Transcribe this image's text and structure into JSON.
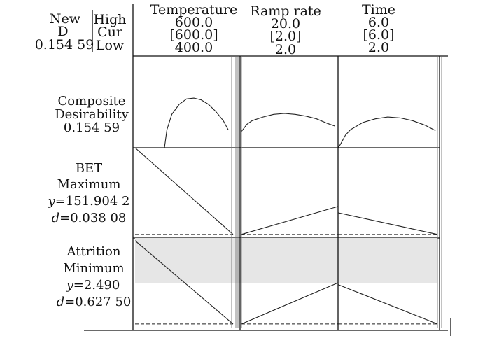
{
  "summary": {
    "new_label": "New",
    "d_label": "D",
    "d_value": "0.154 59",
    "high_label": "High",
    "cur_label": "Cur",
    "low_label": "Low"
  },
  "chart_data": {
    "type": "line",
    "factors": [
      {
        "name": "Temperature",
        "high": "600.0",
        "cur": "[600.0]",
        "low": "400.0",
        "range": [
          400,
          600
        ],
        "current": 600
      },
      {
        "name": "Ramp rate",
        "high": "20.0",
        "cur": "[2.0]",
        "low": "2.0",
        "range": [
          2,
          20
        ],
        "current": 2
      },
      {
        "name": "Time",
        "high": "6.0",
        "cur": "[6.0]",
        "low": "2.0",
        "range": [
          2,
          6
        ],
        "current": 6
      }
    ],
    "rows": [
      {
        "title": "Composite",
        "title2": "Desirability",
        "value": "0.154 59",
        "ylim": [
          0,
          1
        ],
        "shaded_band": null,
        "reference_level": null,
        "curves": [
          {
            "x": [
              400,
              460,
              465,
              475,
              490,
              505,
              520,
              535,
              550,
              565,
              580,
              590
            ],
            "y": [
              0,
              0,
              0.2,
              0.37,
              0.48,
              0.54,
              0.55,
              0.53,
              0.48,
              0.4,
              0.3,
              0.2
            ]
          },
          {
            "x": [
              2,
              3,
              4,
              6,
              8,
              10,
              12,
              14,
              16,
              18,
              19.4
            ],
            "y": [
              0.18,
              0.26,
              0.3,
              0.34,
              0.37,
              0.38,
              0.37,
              0.35,
              0.32,
              0.27,
              0.24
            ]
          },
          {
            "x": [
              2,
              2.1,
              2.3,
              2.5,
              3,
              3.5,
              4,
              4.5,
              5,
              5.5,
              5.92
            ],
            "y": [
              0,
              0.04,
              0.14,
              0.2,
              0.28,
              0.32,
              0.34,
              0.33,
              0.3,
              0.25,
              0.19
            ]
          }
        ]
      },
      {
        "title": "BET",
        "title2": "Maximum",
        "y_label": "y",
        "y_value": "=151.904 2",
        "d_label": "d",
        "d_value": "=0.038 08",
        "ylim": [
          0,
          1
        ],
        "shaded_band": null,
        "reference_level": 0.04,
        "curves": [
          {
            "x": [
              400,
              600
            ],
            "y": [
              1.0,
              0.04
            ]
          },
          {
            "x": [
              2,
              20
            ],
            "y": [
              0.04,
              0.35
            ]
          },
          {
            "x": [
              2,
              6
            ],
            "y": [
              0.28,
              0.04
            ]
          }
        ]
      },
      {
        "title": "Attrition",
        "title2": "Minimum",
        "y_label": "y",
        "y_value": "=2.490",
        "d_label": "d",
        "d_value": "=0.627 50",
        "ylim": [
          0,
          1
        ],
        "shaded_band": [
          0.5,
          1.0
        ],
        "reference_level": 0.04,
        "curves": [
          {
            "x": [
              400,
              600
            ],
            "y": [
              0.97,
              0.04
            ]
          },
          {
            "x": [
              2,
              20
            ],
            "y": [
              0.04,
              0.5
            ]
          },
          {
            "x": [
              2,
              6
            ],
            "y": [
              0.48,
              0.04
            ]
          }
        ]
      }
    ]
  }
}
